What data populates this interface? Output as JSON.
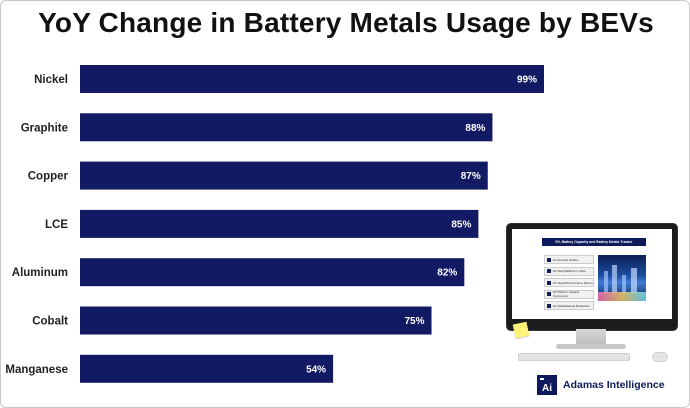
{
  "title": "YoY Change in Battery Metals Usage by BEVs",
  "chart_data": {
    "type": "bar",
    "orientation": "horizontal",
    "title": "YoY Change in Battery Metals Usage by BEVs",
    "categories": [
      "Nickel",
      "Graphite",
      "Copper",
      "LCE",
      "Aluminum",
      "Cobalt",
      "Manganese"
    ],
    "values": [
      99,
      88,
      87,
      85,
      82,
      75,
      54
    ],
    "value_labels": [
      "99%",
      "88%",
      "87%",
      "85%",
      "82%",
      "75%",
      "54%"
    ],
    "unit": "%",
    "xlim": [
      0,
      100
    ],
    "grid": false,
    "bar_color": "#111a63"
  },
  "illustration": {
    "screen_heading": "EV, Battery Capacity and Battery Metals Tracker",
    "screen_items": [
      "EV Demand Profiles",
      "EV Weight/Efficiency Data",
      "EV Weight/Performance Metrics",
      "EV Platform Capacity Deployment",
      "EV Metal/Material Breakdown"
    ]
  },
  "brand": {
    "logo_letters": "Ai",
    "name": "Adamas Intelligence",
    "color": "#0f1a5c"
  }
}
